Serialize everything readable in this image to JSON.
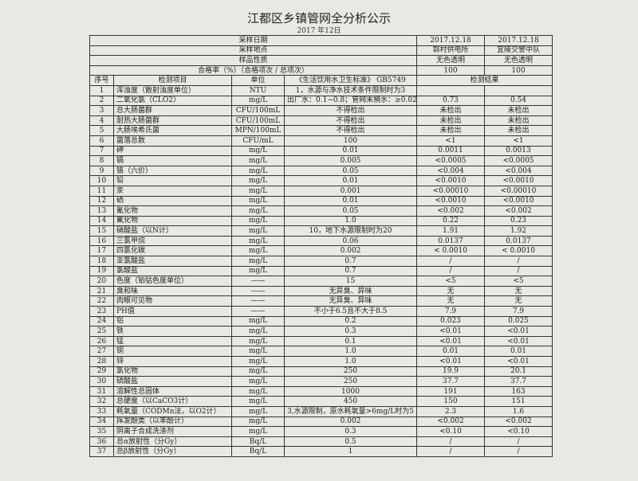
{
  "header": {
    "title": "江都区乡镇管网全分析公示",
    "subtitle": "2017 年12日"
  },
  "info_rows": [
    {
      "label": "采样日期",
      "values": [
        "2017.12.18",
        "2017.12.18"
      ]
    },
    {
      "label": "采样地点",
      "values": [
        "郭村供电所",
        "宜陵交警中队"
      ]
    },
    {
      "label": "样品性质",
      "values": [
        "无色透明",
        "无色透明"
      ]
    },
    {
      "label": "合格率（%）（合格项次 / 总项次）",
      "values": [
        "100",
        "100"
      ]
    }
  ],
  "columns": [
    "序号",
    "检测项目",
    "单位",
    "《生活饮用水卫生标准》 GB5749",
    "检测结果"
  ],
  "rows": [
    [
      "1",
      "浑浊度（散射浊度单位）",
      "NTU",
      "1，水源与净水技术条件限制时为3",
      null,
      null
    ],
    [
      "2",
      "二氧化氯（CLO2）",
      "mg/L",
      "出厂水：0.1~0.8；管网末梢水：≥0.02",
      "0.73",
      "0.54"
    ],
    [
      "3",
      "总大肠菌群",
      "CFU/100mL",
      "不得检出",
      "未检出",
      "未检出"
    ],
    [
      "4",
      "耐热大肠菌群",
      "CFU/100mL",
      "不得检出",
      "未检出",
      "未检出"
    ],
    [
      "5",
      "大肠埃希氏菌",
      "MPN/100mL",
      "不得检出",
      "未检出",
      "未检出"
    ],
    [
      "6",
      "菌落总数",
      "CFU/mL",
      "100",
      "<1",
      "<1"
    ],
    [
      "7",
      "砷",
      "mg/L",
      "0.01",
      "0.0011",
      "0.0013"
    ],
    [
      "8",
      "镉",
      "mg/L",
      "0.005",
      "<0.0005",
      "<0.0005"
    ],
    [
      "9",
      "铬（六价）",
      "mg/L",
      "0.05",
      "<0.004",
      "<0.004"
    ],
    [
      "10",
      "铅",
      "mg/L",
      "0.01",
      "<0.0010",
      "<0.0010"
    ],
    [
      "11",
      "汞",
      "mg/L",
      "0.001",
      "<0.00010",
      "<0.00010"
    ],
    [
      "12",
      "硒",
      "mg/L",
      "0.01",
      "<0.0010",
      "<0.0010"
    ],
    [
      "13",
      "氰化物",
      "mg/L",
      "0.05",
      "<0.002",
      "<0.002"
    ],
    [
      "14",
      "氟化物",
      "mg/L",
      "1.0",
      "0.22",
      "0.23"
    ],
    [
      "15",
      "硝酸盐（以N计）",
      "mg/L",
      "10，地下水源限制时为20",
      "1.91",
      "1.92"
    ],
    [
      "16",
      "三氯甲烷",
      "mg/L",
      "0.06",
      "0.0137",
      "0.0137"
    ],
    [
      "17",
      "四氯化碳",
      "mg/L",
      "0.002",
      "< 0.0010",
      "< 0.0010"
    ],
    [
      "18",
      "亚氯酸盐",
      "mg/L",
      "0.7",
      "/",
      "/"
    ],
    [
      "19",
      "氯酸盐",
      "mg/L",
      "0.7",
      "/",
      "/"
    ],
    [
      "20",
      "色度（铂钴色度单位）",
      "——",
      "15",
      "<5",
      "<5"
    ],
    [
      "21",
      "臭和味",
      "——",
      "无异臭、异味",
      "无",
      "无"
    ],
    [
      "22",
      "肉眼可见物",
      "——",
      "无异臭、异味",
      "无",
      "无"
    ],
    [
      "23",
      "PH值",
      "——",
      "不小于6.5且不大于8.5",
      "7.9",
      "7.9"
    ],
    [
      "24",
      "铝",
      "mg/L",
      "0.2",
      "0.023",
      "0.025"
    ],
    [
      "25",
      "铁",
      "mg/L",
      "0.3",
      "<0.01",
      "<0.01"
    ],
    [
      "26",
      "锰",
      "mg/L",
      "0.1",
      "<0.01",
      "<0.01"
    ],
    [
      "27",
      "铜",
      "mg/L",
      "1.0",
      "0.01",
      "0.01"
    ],
    [
      "28",
      "锌",
      "mg/L",
      "1.0",
      "<0.01",
      "<0.01"
    ],
    [
      "29",
      "氯化物",
      "mg/L",
      "250",
      "19.9",
      "20.1"
    ],
    [
      "30",
      "硫酸盐",
      "mg/L",
      "250",
      "37.7",
      "37.7"
    ],
    [
      "31",
      "溶解性总固体",
      "mg/L",
      "1000",
      "191",
      "163"
    ],
    [
      "32",
      "总硬度（以CaCO3计）",
      "mg/L",
      "450",
      "150",
      "151"
    ],
    [
      "33",
      "耗氧量（CODMn法，以O2计）",
      "mg/L",
      "3,水源限制，原水耗氧量>6mg/L时为5",
      "2.3",
      "1.6"
    ],
    [
      "34",
      "挥发酚类（以苯酚计）",
      "mg/L",
      "0.002",
      "<0.002",
      "<0.002"
    ],
    [
      "35",
      "阴离子合成洗涤剂",
      "mg/L",
      "0.3",
      "<0.10",
      "<0.10"
    ],
    [
      "36",
      "总α放射性（分Gy）",
      "Bq/L",
      "0.5",
      "/",
      "/"
    ],
    [
      "37",
      "总β放射性（分Gy）",
      "Bq/L",
      "1",
      "/",
      "/"
    ]
  ]
}
